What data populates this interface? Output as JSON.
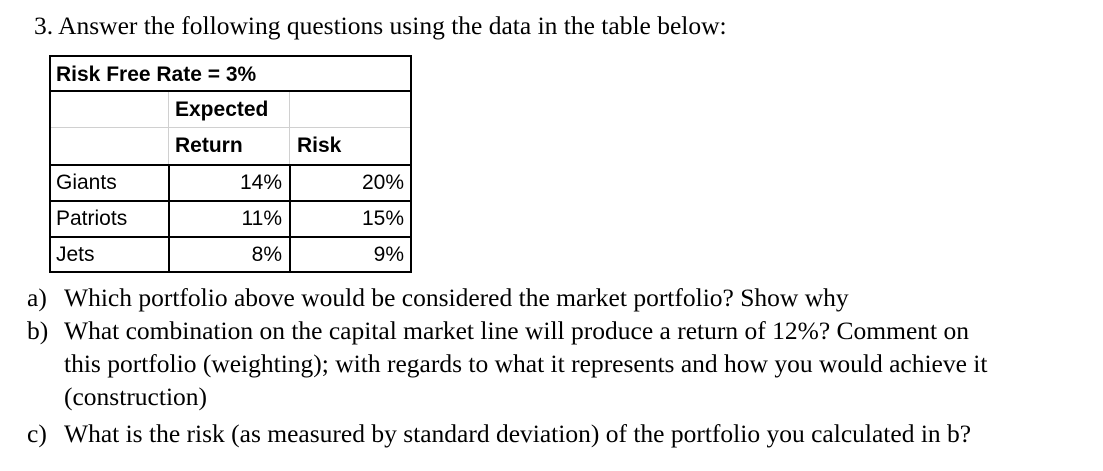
{
  "question": {
    "heading": "3. Answer the following questions using the data in the table below:"
  },
  "table": {
    "title": "Risk Free Rate = 3%",
    "header_expected_line1": "Expected",
    "header_expected_line2": "Return",
    "header_risk": "Risk",
    "rows": [
      {
        "name": "Giants",
        "expected_return": "14%",
        "risk": "20%"
      },
      {
        "name": "Patriots",
        "expected_return": "11%",
        "risk": "15%"
      },
      {
        "name": "Jets",
        "expected_return": "8%",
        "risk": "9%"
      }
    ]
  },
  "subquestions": [
    {
      "letter": "a)",
      "lines": [
        "Which portfolio above would be considered the market portfolio? Show why"
      ]
    },
    {
      "letter": "b)",
      "lines": [
        "What combination on the capital market line will produce a return of 12%? Comment on",
        "this portfolio (weighting); with regards to what it represents and how you would achieve it",
        "(construction)"
      ]
    },
    {
      "letter": "c)",
      "lines": [
        "What is the risk (as measured by standard deviation) of the portfolio you calculated in b?"
      ]
    }
  ]
}
